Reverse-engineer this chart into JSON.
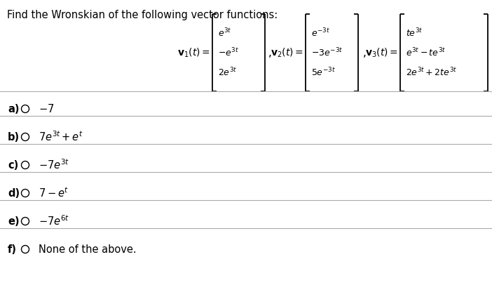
{
  "title": "Find the Wronskian of the following vector functions:",
  "bg_color": "#ffffff",
  "text_color": "#000000",
  "v1_label": "$\\mathbf{v}_1(t) = $",
  "v1_entries": [
    "$e^{3t}$",
    "$-e^{3t}$",
    "$2e^{3t}$"
  ],
  "v2_label": "$\\mathbf{v}_2(t) = $",
  "v2_entries": [
    "$e^{-3t}$",
    "$-3e^{-3t}$",
    "$5e^{-3t}$"
  ],
  "v3_label": "$\\mathbf{v}_3(t) = $",
  "v3_entries": [
    "$te^{3t}$",
    "$e^{3t} - te^{3t}$",
    "$2e^{3t} + 2te^{3t}$"
  ],
  "options": [
    {
      "label": "a)",
      "circle": true,
      "math": true,
      "text": "$-7$"
    },
    {
      "label": "b)",
      "circle": true,
      "math": true,
      "text": "$7e^{3t} + e^{t}$"
    },
    {
      "label": "c)",
      "circle": true,
      "math": true,
      "text": "$-7e^{3t}$"
    },
    {
      "label": "d)",
      "circle": true,
      "math": true,
      "text": "$7 - e^{t}$"
    },
    {
      "label": "e)",
      "circle": true,
      "math": true,
      "text": "$-7e^{6t}$"
    },
    {
      "label": "f)",
      "circle": true,
      "math": false,
      "text": "None of the above."
    }
  ],
  "separator_color": "#aaaaaa",
  "fontsize_title": 10.5,
  "fontsize_vectors": 9.0,
  "fontsize_options": 10.5
}
